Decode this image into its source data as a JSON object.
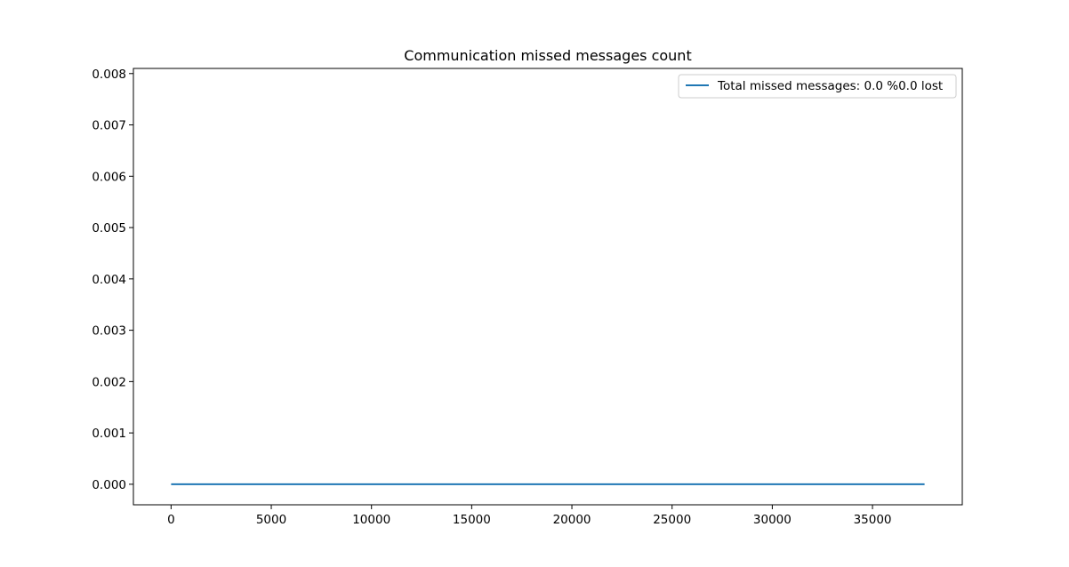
{
  "chart_data": {
    "type": "line",
    "title": "Communication missed messages count",
    "xlabel": "",
    "ylabel": "",
    "xlim": [
      -1880,
      39480
    ],
    "ylim": [
      -0.0004,
      0.0081
    ],
    "x_ticks": [
      0,
      5000,
      10000,
      15000,
      20000,
      25000,
      30000,
      35000
    ],
    "x_tick_labels": [
      "0",
      "5000",
      "10000",
      "15000",
      "20000",
      "25000",
      "30000",
      "35000"
    ],
    "y_ticks": [
      0.0,
      0.001,
      0.002,
      0.003,
      0.004,
      0.005,
      0.006,
      0.007,
      0.008
    ],
    "y_tick_labels": [
      "0.000",
      "0.001",
      "0.002",
      "0.003",
      "0.004",
      "0.005",
      "0.006",
      "0.007",
      "0.008"
    ],
    "grid": false,
    "legend_position": "top-right",
    "series": [
      {
        "name": "Total missed messages: 0.0 %0.0 lost",
        "color": "#1f77b4",
        "x": [
          0,
          37600
        ],
        "y": [
          0,
          0
        ]
      }
    ]
  }
}
